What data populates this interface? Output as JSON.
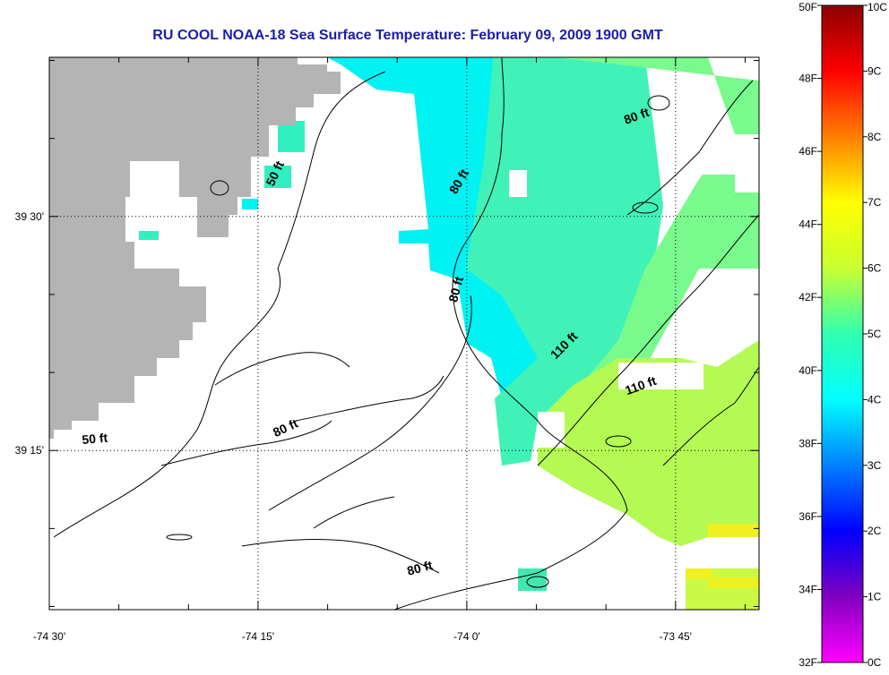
{
  "title": "RU COOL  NOAA-18  Sea Surface Temperature:  February 09, 2009 1900 GMT",
  "map": {
    "lon_range": [
      -74.5,
      -73.65
    ],
    "lat_range": [
      39.08,
      39.67
    ],
    "x_ticks": [
      {
        "value": -74.5,
        "label": "-74 30'"
      },
      {
        "value": -74.25,
        "label": "-74 15'"
      },
      {
        "value": -74.0,
        "label": "-74 0'"
      },
      {
        "value": -73.75,
        "label": "-73 45'"
      }
    ],
    "y_ticks": [
      {
        "value": 39.5,
        "label": "39 30'"
      },
      {
        "value": 39.25,
        "label": "39 15'"
      }
    ],
    "contour_labels": [
      {
        "text": "50 ft",
        "lon": -74.225,
        "lat": 39.544,
        "angle": -65
      },
      {
        "text": "50 ft",
        "lon": -74.445,
        "lat": 39.258,
        "angle": -5
      },
      {
        "text": "80 ft",
        "lon": -74.005,
        "lat": 39.535,
        "angle": -60
      },
      {
        "text": "80 ft",
        "lon": -74.008,
        "lat": 39.421,
        "angle": -75
      },
      {
        "text": "80 ft",
        "lon": -74.215,
        "lat": 39.27,
        "angle": -25
      },
      {
        "text": "80 ft",
        "lon": -74.055,
        "lat": 39.12,
        "angle": -15
      },
      {
        "text": "80 ft",
        "lon": -73.795,
        "lat": 39.603,
        "angle": -20
      },
      {
        "text": "110 ft",
        "lon": -73.88,
        "lat": 39.359,
        "angle": -45
      },
      {
        "text": "110 ft",
        "lon": -73.79,
        "lat": 39.315,
        "angle": -20
      }
    ]
  },
  "colorbar": {
    "fahrenheit_labels": [
      "50F",
      "48F",
      "46F",
      "44F",
      "42F",
      "40F",
      "38F",
      "36F",
      "34F",
      "32F"
    ],
    "celsius_labels": [
      "10C",
      "9C",
      "8C",
      "7C",
      "6C",
      "5C",
      "4C",
      "3C",
      "2C",
      "1C",
      "0C"
    ],
    "gradient": [
      "#8b0000",
      "#ff0000",
      "#ff8000",
      "#ffff00",
      "#c8ff30",
      "#30ffb0",
      "#00ffff",
      "#0080ff",
      "#0000ff",
      "#8000c0",
      "#ff00ff"
    ]
  },
  "colors": {
    "land": "#b4b4b4",
    "cloud": "#ffffff",
    "sst_cyan": "#00f2f2",
    "sst_teal": "#30f0c0",
    "sst_green": "#80ff80",
    "sst_lime": "#b8ff50",
    "sst_yellow": "#f0f020",
    "title": "#1c1caa"
  }
}
